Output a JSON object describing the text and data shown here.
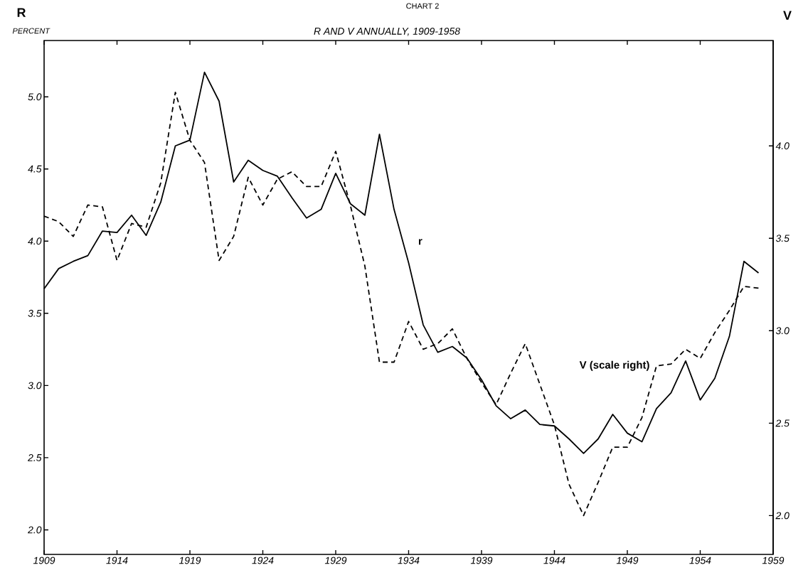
{
  "chart_data": {
    "type": "line",
    "title": "CHART 2",
    "subtitle": "R AND V ANNUALLY, 1909-1958",
    "ylabel": "R",
    "y2label": "V",
    "annotations": [
      "PERCENT"
    ],
    "x": [
      1909,
      1910,
      1911,
      1912,
      1913,
      1914,
      1915,
      1916,
      1917,
      1918,
      1919,
      1920,
      1921,
      1922,
      1923,
      1924,
      1925,
      1926,
      1927,
      1928,
      1929,
      1930,
      1931,
      1932,
      1933,
      1934,
      1935,
      1936,
      1937,
      1938,
      1939,
      1940,
      1941,
      1942,
      1943,
      1944,
      1945,
      1946,
      1947,
      1948,
      1949,
      1950,
      1951,
      1952,
      1953,
      1954,
      1955,
      1956,
      1957,
      1958
    ],
    "series": [
      {
        "name": "r",
        "color": "#000000",
        "line_style": "solid",
        "values": [
          3.67,
          3.81,
          3.86,
          3.9,
          4.07,
          4.06,
          4.18,
          4.04,
          4.27,
          4.66,
          4.7,
          5.17,
          4.97,
          4.41,
          4.56,
          4.49,
          4.45,
          4.3,
          4.16,
          4.22,
          4.47,
          4.26,
          4.18,
          4.74,
          4.22,
          3.85,
          3.42,
          3.23,
          3.27,
          3.19,
          3.04,
          2.86,
          2.77,
          2.83,
          2.73,
          2.72,
          2.63,
          2.53,
          2.63,
          2.8,
          2.67,
          2.61,
          2.84,
          2.95,
          3.17,
          2.9,
          3.05,
          3.34,
          3.86,
          3.78
        ]
      },
      {
        "name": "V (scale right)",
        "color": "#000000",
        "line_style": "dashed",
        "axis": "y2",
        "values": [
          3.62,
          3.59,
          3.51,
          3.68,
          3.67,
          3.38,
          3.58,
          3.56,
          3.8,
          4.29,
          4.03,
          3.91,
          3.38,
          3.51,
          3.83,
          3.68,
          3.82,
          3.86,
          3.78,
          3.78,
          3.97,
          3.68,
          3.35,
          2.83,
          2.83,
          3.05,
          2.9,
          2.93,
          3.01,
          2.85,
          2.72,
          2.6,
          2.77,
          2.93,
          2.71,
          2.49,
          2.17,
          2.0,
          2.18,
          2.37,
          2.37,
          2.53,
          2.81,
          2.82,
          2.9,
          2.85,
          2.99,
          3.11,
          3.24,
          3.23
        ]
      }
    ],
    "xlim": [
      1909,
      1959
    ],
    "xticks": [
      1909,
      1914,
      1919,
      1924,
      1929,
      1934,
      1939,
      1944,
      1949,
      1954,
      1959
    ],
    "ylim": [
      1.83,
      5.39
    ],
    "yticks": [
      {
        "value": 2.0,
        "label": "2.0"
      },
      {
        "value": 2.5,
        "label": "2.5"
      },
      {
        "value": 3.0,
        "label": "3.0"
      },
      {
        "value": 3.5,
        "label": "3.5"
      },
      {
        "value": 4.0,
        "label": "4.0"
      },
      {
        "value": 4.5,
        "label": "4.5"
      },
      {
        "value": 5.0,
        "label": "5.0"
      }
    ],
    "y2lim": [
      1.79,
      4.57
    ],
    "y2ticks": [
      {
        "value": 2.0,
        "label": "2.0"
      },
      {
        "value": 2.5,
        "label": "2.5"
      },
      {
        "value": 3.0,
        "label": "3.0"
      },
      {
        "value": 3.5,
        "label": "3.5"
      },
      {
        "value": 4.0,
        "label": "4.0"
      }
    ]
  }
}
